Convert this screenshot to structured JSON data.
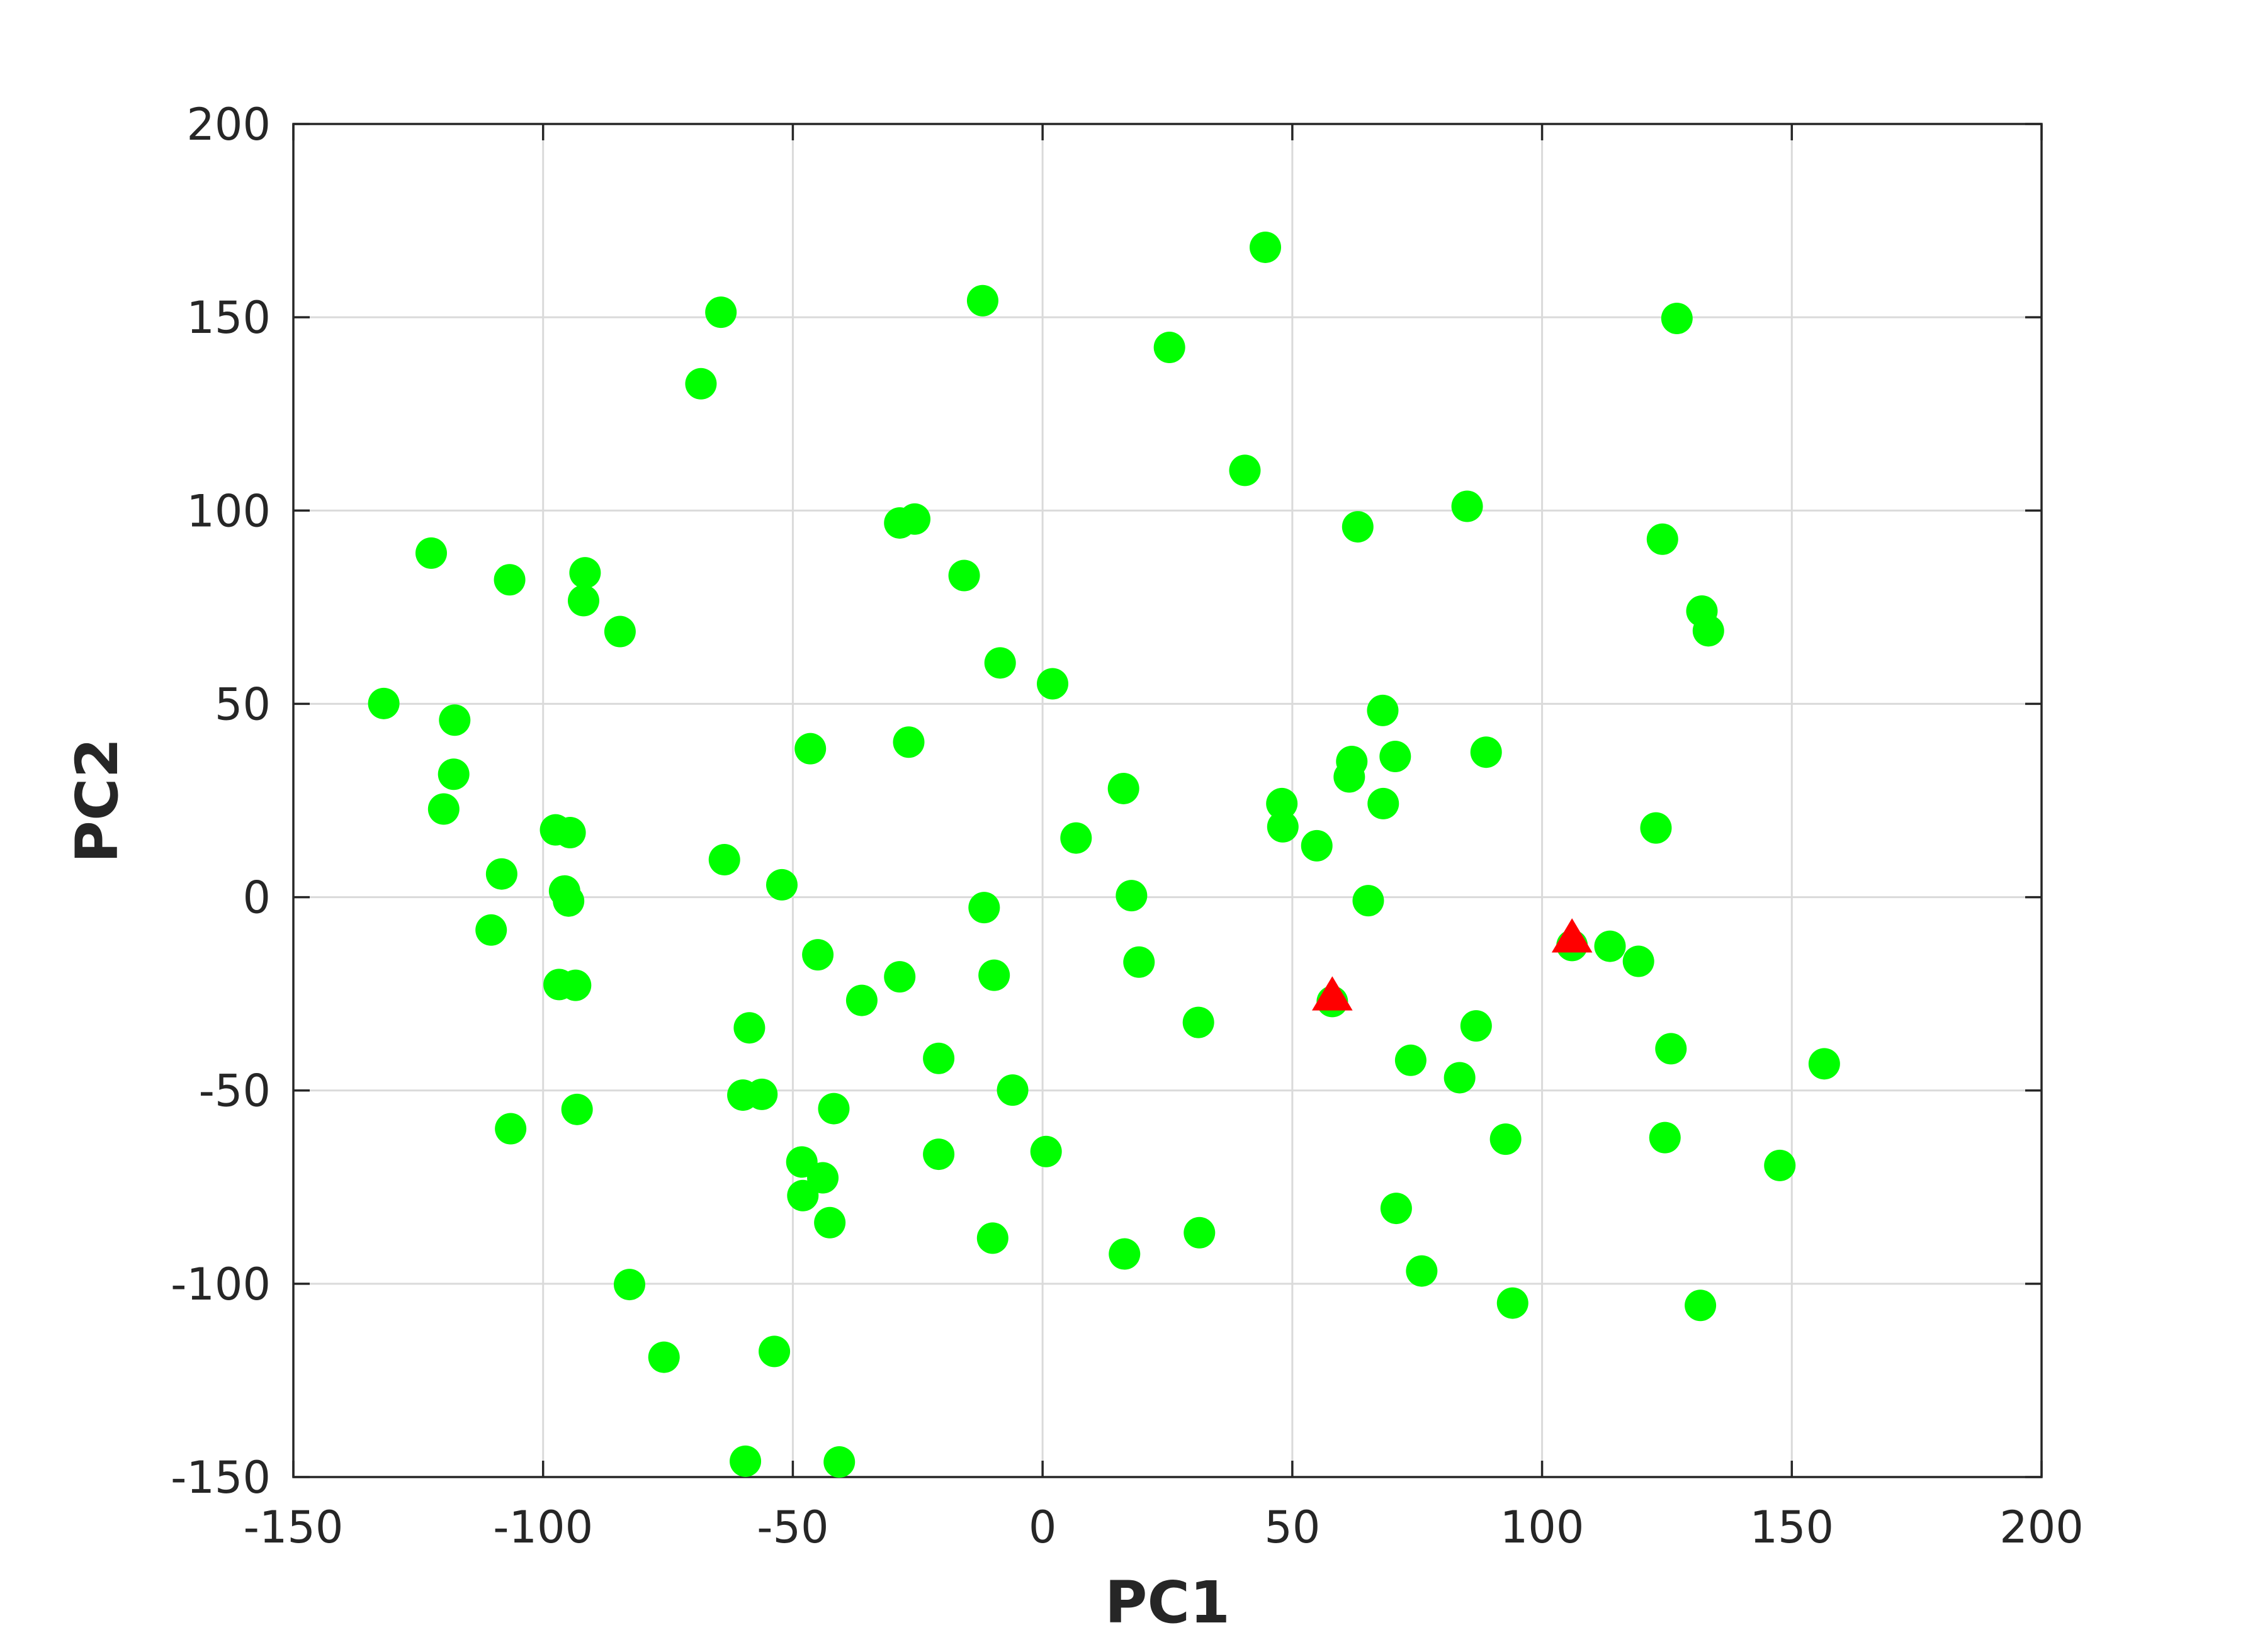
{
  "chart_data": {
    "type": "scatter",
    "title": "",
    "xlabel": "PC1",
    "ylabel": "PC2",
    "xlim": [
      -150,
      200
    ],
    "ylim": [
      -150,
      200
    ],
    "xticks": [
      -150,
      -100,
      -50,
      0,
      50,
      100,
      150,
      200
    ],
    "yticks": [
      -150,
      -100,
      -50,
      0,
      50,
      100,
      150,
      200
    ],
    "xtick_labels": [
      "-150",
      "-100",
      "-50",
      "0",
      "50",
      "100",
      "150",
      "200"
    ],
    "ytick_labels": [
      "-150",
      "-100",
      "-50",
      "0",
      "50",
      "100",
      "150",
      "200"
    ],
    "grid": true,
    "legend": "none",
    "series": [
      {
        "marker": "circle",
        "color": "#00ff00",
        "points": [
          [
            44.6,
            168.1
          ],
          [
            -64.4,
            151.3
          ],
          [
            -12.0,
            154.3
          ],
          [
            127.0,
            149.7
          ],
          [
            25.4,
            142.2
          ],
          [
            -68.4,
            132.8
          ],
          [
            40.5,
            110.4
          ],
          [
            85.0,
            101.1
          ],
          [
            -28.6,
            96.8
          ],
          [
            -25.6,
            97.8
          ],
          [
            63.1,
            95.8
          ],
          [
            124.1,
            92.6
          ],
          [
            -122.4,
            89.0
          ],
          [
            -15.7,
            83.2
          ],
          [
            -106.7,
            82.1
          ],
          [
            -91.6,
            83.9
          ],
          [
            -91.9,
            76.7
          ],
          [
            132.0,
            74.0
          ],
          [
            133.3,
            68.9
          ],
          [
            -84.6,
            68.7
          ],
          [
            -8.5,
            60.6
          ],
          [
            2.0,
            55.2
          ],
          [
            -131.9,
            50.1
          ],
          [
            -117.7,
            45.8
          ],
          [
            68.1,
            48.3
          ],
          [
            -46.5,
            38.4
          ],
          [
            -26.8,
            40.1
          ],
          [
            88.8,
            37.5
          ],
          [
            61.9,
            35.1
          ],
          [
            70.6,
            36.4
          ],
          [
            61.4,
            31.1
          ],
          [
            -117.9,
            31.8
          ],
          [
            16.2,
            28.1
          ],
          [
            47.9,
            24.2
          ],
          [
            68.2,
            24.2
          ],
          [
            -119.9,
            22.8
          ],
          [
            48.1,
            18.2
          ],
          [
            122.8,
            17.9
          ],
          [
            -97.5,
            17.4
          ],
          [
            -94.6,
            16.7
          ],
          [
            6.7,
            15.3
          ],
          [
            54.9,
            13.3
          ],
          [
            -63.7,
            9.7
          ],
          [
            -108.3,
            6.0
          ],
          [
            -52.2,
            3.2
          ],
          [
            -95.7,
            1.6
          ],
          [
            17.8,
            0.4
          ],
          [
            -94.9,
            -1.0
          ],
          [
            65.2,
            -0.9
          ],
          [
            -11.7,
            -2.7
          ],
          [
            -110.4,
            -8.5
          ],
          [
            113.6,
            -12.7
          ],
          [
            119.3,
            -16.6
          ],
          [
            -45.0,
            -14.9
          ],
          [
            19.3,
            -16.8
          ],
          [
            -28.6,
            -20.6
          ],
          [
            -9.7,
            -20.2
          ],
          [
            -96.8,
            -22.6
          ],
          [
            -93.5,
            -22.8
          ],
          [
            -36.2,
            -26.7
          ],
          [
            -58.7,
            -33.8
          ],
          [
            86.8,
            -33.3
          ],
          [
            31.2,
            -32.4
          ],
          [
            73.7,
            -42.2
          ],
          [
            -20.8,
            -41.7
          ],
          [
            125.8,
            -39.2
          ],
          [
            156.5,
            -43.1
          ],
          [
            83.5,
            -46.7
          ],
          [
            -6.0,
            -49.9
          ],
          [
            -60.0,
            -51.2
          ],
          [
            -56.2,
            -51.0
          ],
          [
            -41.8,
            -54.7
          ],
          [
            -93.2,
            -54.9
          ],
          [
            -106.5,
            -59.9
          ],
          [
            92.7,
            -62.6
          ],
          [
            124.6,
            -62.2
          ],
          [
            -20.8,
            -66.5
          ],
          [
            0.7,
            -65.8
          ],
          [
            -48.2,
            -68.5
          ],
          [
            147.6,
            -69.4
          ],
          [
            -44.0,
            -72.6
          ],
          [
            -48.0,
            -77.2
          ],
          [
            70.8,
            -80.5
          ],
          [
            -42.6,
            -84.2
          ],
          [
            31.4,
            -86.8
          ],
          [
            -10.0,
            -88.2
          ],
          [
            16.4,
            -92.3
          ],
          [
            75.9,
            -96.7
          ],
          [
            -82.7,
            -100.2
          ],
          [
            94.1,
            -105.0
          ],
          [
            131.7,
            -105.6
          ],
          [
            -53.7,
            -117.5
          ],
          [
            -75.8,
            -119.0
          ],
          [
            -59.5,
            -145.9
          ],
          [
            -40.7,
            -146.1
          ],
          [
            58.0,
            -27.0
          ],
          [
            106.0,
            -12.5
          ]
        ]
      },
      {
        "marker": "triangle",
        "color": "#ff0000",
        "points": [
          [
            58.0,
            -26.0
          ],
          [
            106.0,
            -11.0
          ]
        ]
      }
    ]
  }
}
